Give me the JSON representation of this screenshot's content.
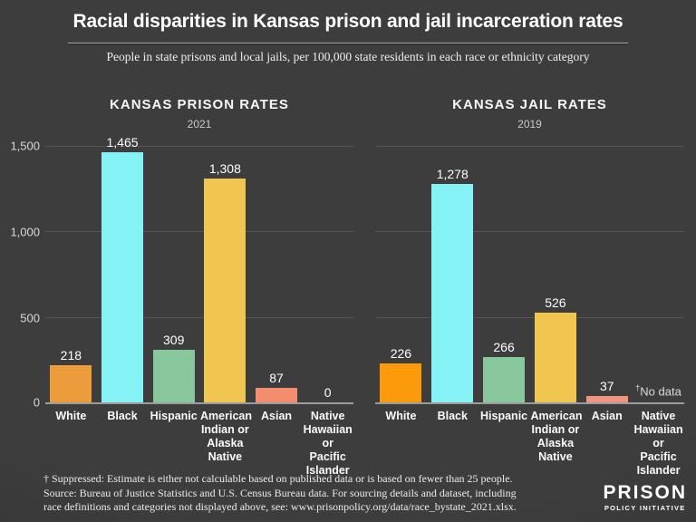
{
  "header": {
    "title": "Racial disparities in Kansas prison and jail incarceration rates",
    "subtitle": "People in state prisons and local jails, per 100,000 state residents in each race or ethnicity category"
  },
  "y_axis": {
    "ticks": [
      "1,500",
      "1,000",
      "500",
      "0"
    ],
    "max": 1500,
    "gridlines": [
      1500,
      1000,
      500,
      0
    ]
  },
  "no_data_label": "†No data",
  "chart_data": [
    {
      "type": "bar",
      "title": "KANSAS PRISON RATES",
      "year": "2021",
      "categories": [
        "White",
        "Black",
        "Hispanic",
        "American Indian or Alaska Native",
        "Asian",
        "Native Hawaiian or Pacific Islander"
      ],
      "values": [
        218,
        1465,
        309,
        1308,
        87,
        0
      ],
      "value_labels": [
        "218",
        "1,465",
        "309",
        "1,308",
        "87",
        "0"
      ],
      "colors": [
        "#ed9c3b",
        "#85f2f5",
        "#87c79b",
        "#f0c651",
        "#f28e6d",
        "#888888"
      ],
      "ylim": [
        0,
        1500
      ],
      "legend": "none",
      "grid": true
    },
    {
      "type": "bar",
      "title": "KANSAS JAIL RATES",
      "year": "2019",
      "categories": [
        "White",
        "Black",
        "Hispanic",
        "American Indian or Alaska Native",
        "Asian",
        "Native Hawaiian or Pacific Islander"
      ],
      "values": [
        226,
        1278,
        266,
        526,
        37,
        null
      ],
      "value_labels": [
        "226",
        "1,278",
        "266",
        "526",
        "37",
        "†No data"
      ],
      "colors": [
        "#fb9a0b",
        "#85f2f5",
        "#87c79b",
        "#f0c651",
        "#f2937f",
        "#888888"
      ],
      "ylim": [
        0,
        1500
      ],
      "legend": "none",
      "grid": true
    }
  ],
  "footer": {
    "lines": [
      "† Suppressed: Estimate is either not calculable based on published data or is based on fewer than 25 people.",
      "Source: Bureau of Justice Statistics and U.S. Census Bureau data. For sourcing details and dataset, including",
      "race definitions and categories not displayed above, see: www.prisonpolicy.org/data/race_bystate_2021.xlsx."
    ]
  },
  "logo": {
    "line1": "PRISON",
    "line2": "POLICY INITIATIVE"
  }
}
